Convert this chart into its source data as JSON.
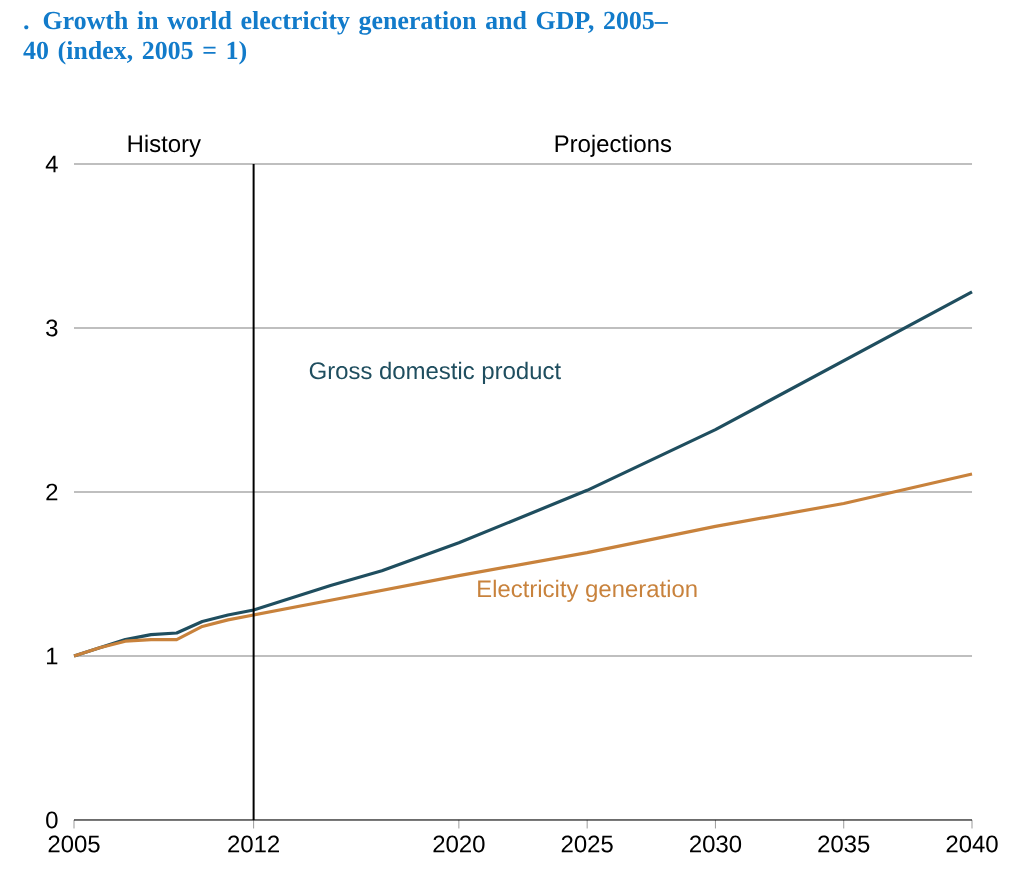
{
  "chart_data": {
    "type": "line",
    "title": ". Growth in world electricity generation and GDP, 2005–40 (index, 2005 = 1)",
    "xlim": [
      2005,
      2040
    ],
    "xticks": [
      2005,
      2012,
      2020,
      2025,
      2030,
      2035,
      2040
    ],
    "ylim": [
      0,
      4
    ],
    "yticks": [
      0,
      1,
      2,
      3,
      4
    ],
    "grid": "y",
    "series": [
      {
        "name": "Gross domestic product",
        "color": "#1f4e5f",
        "x": [
          2005,
          2006,
          2007,
          2008,
          2009,
          2010,
          2011,
          2012,
          2015,
          2017,
          2020,
          2025,
          2030,
          2035,
          2040
        ],
        "values": [
          1.0,
          1.05,
          1.1,
          1.13,
          1.14,
          1.21,
          1.25,
          1.28,
          1.43,
          1.52,
          1.69,
          2.01,
          2.38,
          2.8,
          3.22
        ]
      },
      {
        "name": "Electricity generation",
        "color": "#c8823c",
        "x": [
          2005,
          2006,
          2007,
          2008,
          2009,
          2010,
          2011,
          2012,
          2015,
          2020,
          2025,
          2030,
          2035,
          2040
        ],
        "values": [
          1.0,
          1.05,
          1.09,
          1.1,
          1.1,
          1.18,
          1.22,
          1.25,
          1.34,
          1.49,
          1.63,
          1.79,
          1.93,
          2.11
        ]
      }
    ],
    "ref_lines": [
      {
        "axis": "x",
        "value": 2012,
        "color": "#000000"
      }
    ],
    "annotations": [
      "History",
      "Projections"
    ]
  }
}
